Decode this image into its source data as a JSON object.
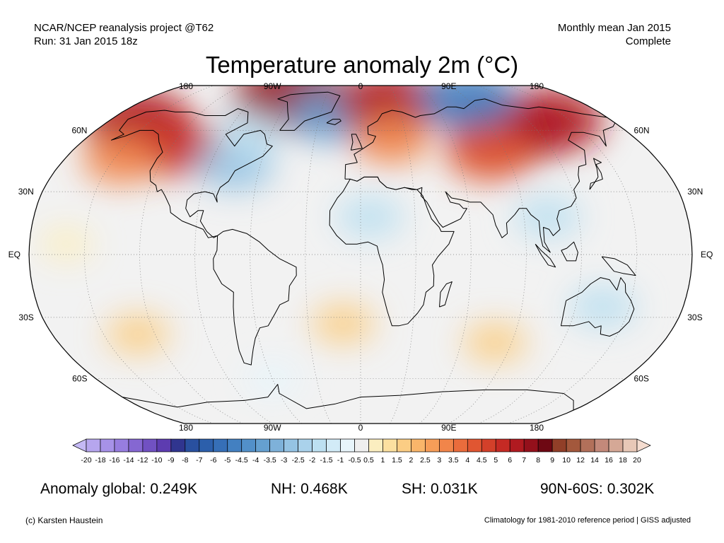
{
  "header": {
    "source_line1": "NCAR/NCEP reanalysis project @T62",
    "source_line2": "Run: 31 Jan 2015 18z",
    "period_line1": "Monthly mean Jan 2015",
    "period_line2": "Complete"
  },
  "title": "Temperature anomaly 2m (°C)",
  "map": {
    "projection": "Robinson",
    "lon_labels": [
      "180",
      "90W",
      "0",
      "90E",
      "180"
    ],
    "lat_labels_left": [
      "60N",
      "30N",
      "EQ",
      "30S",
      "60S"
    ],
    "lat_labels_right": [
      "60N",
      "30N",
      "EQ",
      "30S",
      "60S"
    ],
    "anomaly_regions": [
      {
        "name": "Arctic Alaska / Bering Strait",
        "lon": -160,
        "lat": 65,
        "anomaly": 6
      },
      {
        "name": "Western North America",
        "lon": -118,
        "lat": 52,
        "anomaly": 5
      },
      {
        "name": "Northeast Pacific",
        "lon": -145,
        "lat": 45,
        "anomaly": 3
      },
      {
        "name": "Western Greenland Arctic",
        "lon": -60,
        "lat": 80,
        "anomaly": 7
      },
      {
        "name": "Eastern North America",
        "lon": -75,
        "lat": 42,
        "anomaly": -3
      },
      {
        "name": "Northeast Canada",
        "lon": -75,
        "lat": 58,
        "anomaly": -2
      },
      {
        "name": "Greenland Sea / Iceland",
        "lon": -20,
        "lat": 68,
        "anomaly": -4
      },
      {
        "name": "Barents Sea / Arctic Norway",
        "lon": 25,
        "lat": 76,
        "anomaly": 6
      },
      {
        "name": "Europe",
        "lon": 20,
        "lat": 55,
        "anomaly": 3
      },
      {
        "name": "Sahara / Sahel",
        "lon": 5,
        "lat": 18,
        "anomaly": -2
      },
      {
        "name": "Central Siberia",
        "lon": 100,
        "lat": 60,
        "anomaly": 7
      },
      {
        "name": "Eastern Siberia",
        "lon": 135,
        "lat": 65,
        "anomaly": 6
      },
      {
        "name": "Central Asia",
        "lon": 80,
        "lat": 48,
        "anomaly": 4
      },
      {
        "name": "Arctic Siberia",
        "lon": 90,
        "lat": 78,
        "anomaly": -5
      },
      {
        "name": "Indochina",
        "lon": 103,
        "lat": 18,
        "anomaly": -2
      },
      {
        "name": "Australia",
        "lon": 135,
        "lat": -25,
        "anomaly": -2
      },
      {
        "name": "South Atlantic",
        "lon": -10,
        "lat": -33,
        "anomaly": 1.5
      },
      {
        "name": "Southern Indian Ocean",
        "lon": 80,
        "lat": -42,
        "anomaly": 1.5
      },
      {
        "name": "South Pacific",
        "lon": -130,
        "lat": -38,
        "anomaly": 1.5
      },
      {
        "name": "Southern Ocean",
        "lon": -60,
        "lat": -60,
        "anomaly": -1
      },
      {
        "name": "Tropical Pacific",
        "lon": -160,
        "lat": 5,
        "anomaly": 0.5
      }
    ]
  },
  "colorbar": {
    "labels": [
      "-20",
      "-18",
      "-16",
      "-14",
      "-12",
      "-10",
      "-9",
      "-8",
      "-7",
      "-6",
      "-5",
      "-4.5",
      "-4",
      "-3.5",
      "-3",
      "-2.5",
      "-2",
      "-1.5",
      "-1",
      "-0.5",
      "0.5",
      "1",
      "1.5",
      "2",
      "2.5",
      "3",
      "3.5",
      "4",
      "4.5",
      "5",
      "6",
      "7",
      "8",
      "9",
      "10",
      "12",
      "14",
      "16",
      "18",
      "20"
    ],
    "colors": [
      "#c4b9f4",
      "#b6a6ee",
      "#a792e8",
      "#977ddf",
      "#8567d2",
      "#7151c2",
      "#5d3cb0",
      "#30358f",
      "#29509f",
      "#2c5fab",
      "#366fb7",
      "#4380c1",
      "#5290c9",
      "#65a0d0",
      "#7eb1d9",
      "#95c3e3",
      "#aad2eb",
      "#bde0f1",
      "#d2ebf7",
      "#e8f5fb",
      "#efefef",
      "#fbeec0",
      "#fce0a0",
      "#fbcd84",
      "#f9b56a",
      "#f69d58",
      "#f1854a",
      "#ea6c3c",
      "#e05632",
      "#d3402a",
      "#c52a24",
      "#b01a20",
      "#94101b",
      "#6e0813",
      "#913f28",
      "#a3583c",
      "#b2705a",
      "#c3897a",
      "#d5a896",
      "#e8c8b7",
      "#f4dccf"
    ]
  },
  "stats": {
    "global_label": "Anomaly global:",
    "global_value": "0.249K",
    "nh_label": "NH:",
    "nh_value": "0.468K",
    "sh_label": "SH:",
    "sh_value": "0.031K",
    "polar_label": "90N-60S:",
    "polar_value": "0.302K"
  },
  "footer": {
    "credit": "(c) Karsten Haustein",
    "note": "Climatology for 1981-2010 reference period | GISS adjusted"
  },
  "colors": {
    "ocean_neutral": "#f2f2f2",
    "coastline": "#000000"
  }
}
